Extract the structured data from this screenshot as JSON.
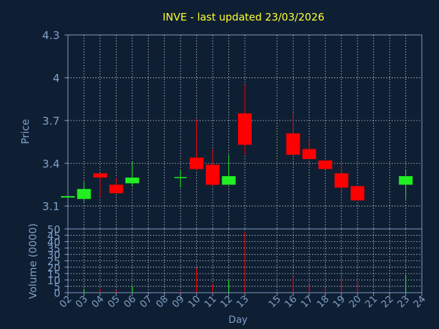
{
  "title": "INVE - last updated 23/03/2026",
  "colors": {
    "background": "#0f1f33",
    "title": "#ffff33",
    "axis_text": "#7fa0c8",
    "grid": "#ffffff",
    "up": "#22ee22",
    "down": "#ff0000"
  },
  "chart_data": [
    {
      "type": "candlestick",
      "ylabel": "Price",
      "ylim": [
        2.94,
        4.3
      ],
      "y_ticks": [
        "4.3",
        "4",
        "3.7",
        "3.4",
        "3.1"
      ],
      "grid": true,
      "candles": [
        {
          "x": 2,
          "open": 3.16,
          "close": 3.17,
          "high": 3.17,
          "low": 3.16
        },
        {
          "x": 3,
          "open": 3.15,
          "close": 3.22,
          "high": 3.27,
          "low": 3.13
        },
        {
          "x": 4,
          "open": 3.33,
          "close": 3.3,
          "high": 3.33,
          "low": 3.16
        },
        {
          "x": 5,
          "open": 3.25,
          "close": 3.19,
          "high": 3.3,
          "low": 3.19
        },
        {
          "x": 6,
          "open": 3.26,
          "close": 3.3,
          "high": 3.41,
          "low": 3.24
        },
        {
          "x": 9,
          "open": 3.3,
          "close": 3.3,
          "high": 3.35,
          "low": 3.23
        },
        {
          "x": 10,
          "open": 3.44,
          "close": 3.36,
          "high": 3.71,
          "low": 3.35
        },
        {
          "x": 11,
          "open": 3.39,
          "close": 3.25,
          "high": 3.5,
          "low": 3.24
        },
        {
          "x": 12,
          "open": 3.25,
          "close": 3.31,
          "high": 3.46,
          "low": 3.25
        },
        {
          "x": 13,
          "open": 3.75,
          "close": 3.53,
          "high": 3.95,
          "low": 3.46
        },
        {
          "x": 16,
          "open": 3.61,
          "close": 3.46,
          "high": 3.75,
          "low": 3.46
        },
        {
          "x": 17,
          "open": 3.5,
          "close": 3.43,
          "high": 3.56,
          "low": 3.43
        },
        {
          "x": 18,
          "open": 3.42,
          "close": 3.36,
          "high": 3.42,
          "low": 3.36
        },
        {
          "x": 19,
          "open": 3.33,
          "close": 3.23,
          "high": 3.4,
          "low": 3.2
        },
        {
          "x": 20,
          "open": 3.24,
          "close": 3.14,
          "high": 3.24,
          "low": 3.14
        },
        {
          "x": 23,
          "open": 3.25,
          "close": 3.31,
          "high": 3.35,
          "low": 3.15
        }
      ]
    },
    {
      "type": "bar",
      "ylabel": "Volume (0000)",
      "xlabel": "Day",
      "ylim": [
        0,
        50
      ],
      "y_ticks": [
        "50",
        "45",
        "40",
        "35",
        "30",
        "25",
        "20",
        "15",
        "10",
        "5",
        "0"
      ],
      "categories": [
        "02",
        "03",
        "04",
        "05",
        "06",
        "07",
        "08",
        "09",
        "10",
        "11",
        "12",
        "13",
        "15",
        "16",
        "17",
        "18",
        "19",
        "20",
        "21",
        "22",
        "23",
        "24"
      ],
      "x_positions": [
        2,
        3,
        4,
        5,
        6,
        7,
        8,
        9,
        10,
        11,
        12,
        13,
        15,
        16,
        17,
        18,
        19,
        20,
        21,
        22,
        23,
        24
      ],
      "grid": true,
      "bars": [
        {
          "x": 3,
          "value": 3,
          "trend": "up"
        },
        {
          "x": 4,
          "value": 3,
          "trend": "down"
        },
        {
          "x": 5,
          "value": 2,
          "trend": "down"
        },
        {
          "x": 6,
          "value": 5,
          "trend": "up"
        },
        {
          "x": 9,
          "value": 1,
          "trend": "down"
        },
        {
          "x": 10,
          "value": 19,
          "trend": "down"
        },
        {
          "x": 11,
          "value": 7,
          "trend": "down"
        },
        {
          "x": 12,
          "value": 10,
          "trend": "up"
        },
        {
          "x": 13,
          "value": 48,
          "trend": "down"
        },
        {
          "x": 16,
          "value": 13,
          "trend": "down"
        },
        {
          "x": 17,
          "value": 6,
          "trend": "down"
        },
        {
          "x": 18,
          "value": 4,
          "trend": "down"
        },
        {
          "x": 19,
          "value": 12,
          "trend": "down"
        },
        {
          "x": 20,
          "value": 9,
          "trend": "down"
        },
        {
          "x": 23,
          "value": 14,
          "trend": "up"
        }
      ]
    }
  ]
}
